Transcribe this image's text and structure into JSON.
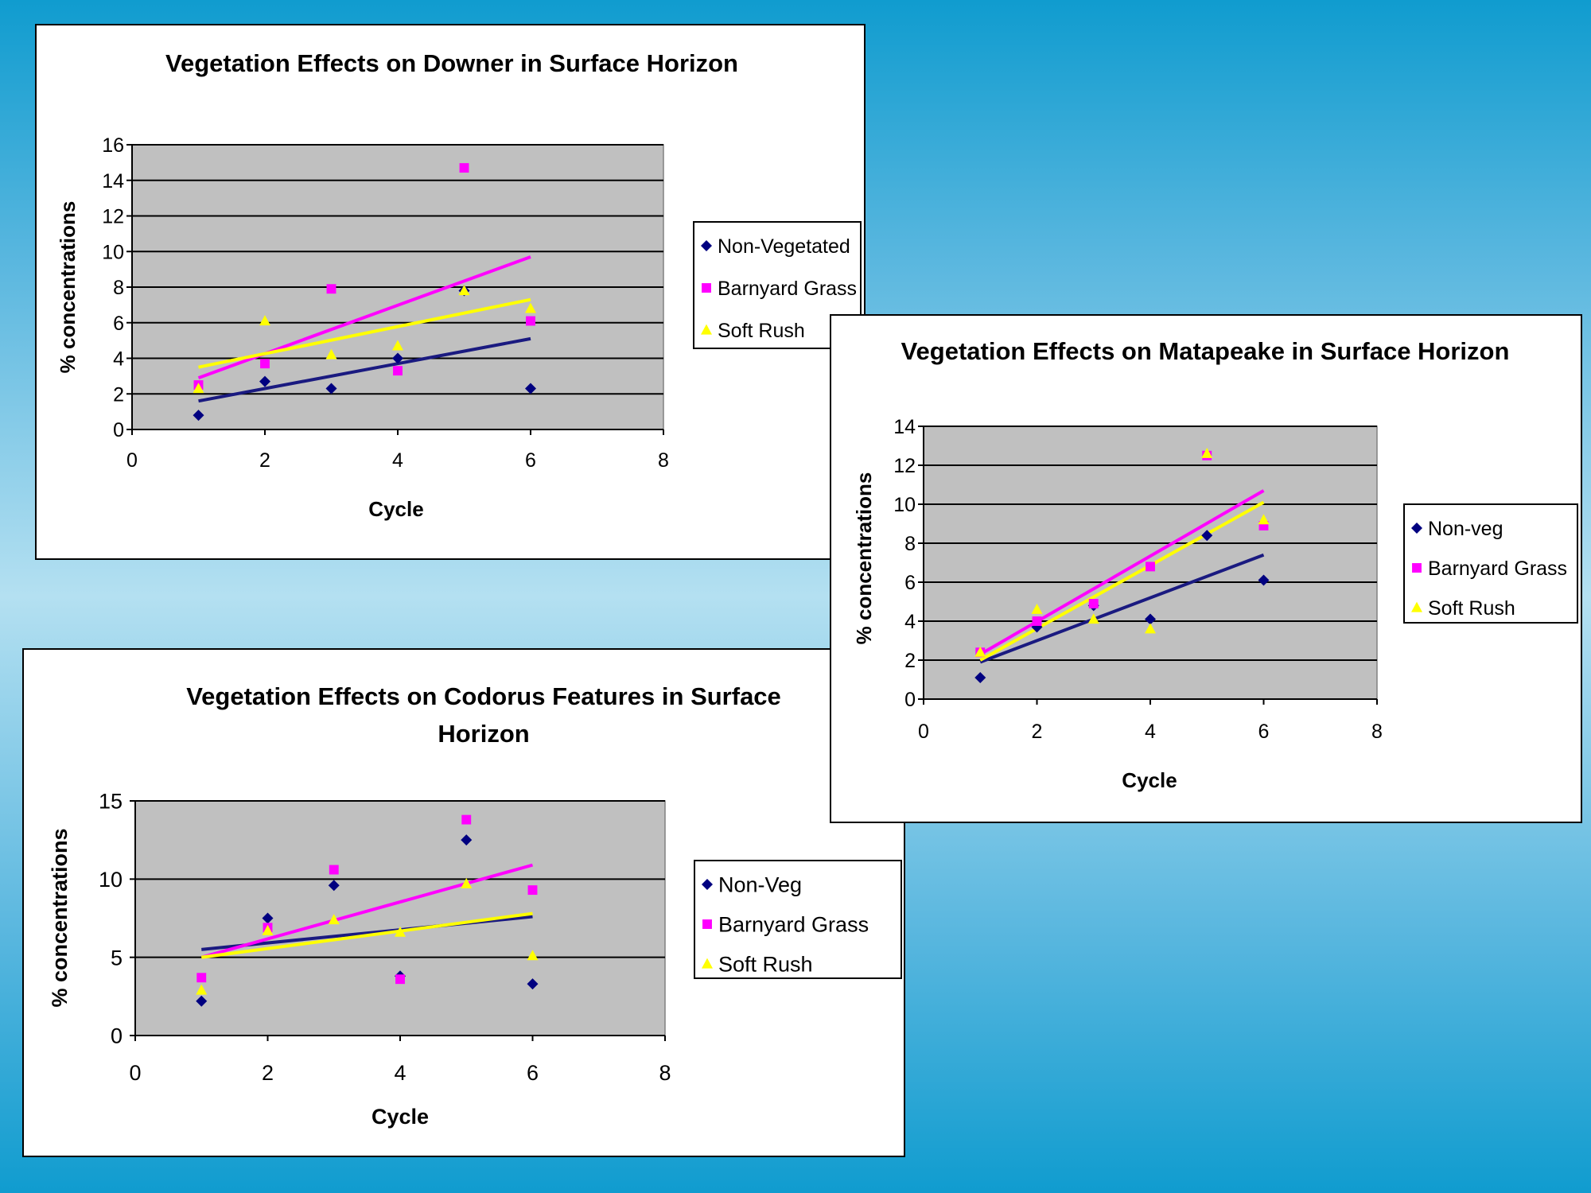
{
  "chart_data": [
    {
      "id": "downer",
      "type": "scatter",
      "title": "Vegetation Effects on Downer in Surface Horizon",
      "xlabel": "Cycle",
      "ylabel": "% concentrations",
      "xlim": [
        0,
        8
      ],
      "ylim": [
        0,
        16
      ],
      "xticks": [
        0,
        2,
        4,
        6,
        8
      ],
      "yticks": [
        0,
        2,
        4,
        6,
        8,
        10,
        12,
        14,
        16
      ],
      "grid": true,
      "legend_position": "right",
      "series": [
        {
          "name": "Non-Vegetated",
          "marker": "diamond",
          "color": "#000080",
          "x": [
            1,
            2,
            3,
            4,
            5,
            6
          ],
          "y": [
            0.8,
            2.7,
            2.3,
            4.0,
            7.8,
            2.3
          ],
          "trend": [
            [
              1,
              1.6
            ],
            [
              6,
              5.1
            ]
          ]
        },
        {
          "name": "Barnyard Grass",
          "marker": "square",
          "color": "#ff00ff",
          "x": [
            1,
            2,
            3,
            4,
            5,
            6
          ],
          "y": [
            2.5,
            3.7,
            7.9,
            3.3,
            14.7,
            6.1
          ],
          "trend": [
            [
              1,
              2.9
            ],
            [
              6,
              9.7
            ]
          ]
        },
        {
          "name": "Soft Rush",
          "marker": "triangle",
          "color": "#ffff00",
          "x": [
            1,
            2,
            3,
            4,
            5,
            6
          ],
          "y": [
            2.3,
            6.1,
            4.2,
            4.7,
            7.8,
            6.8
          ],
          "trend": [
            [
              1,
              3.5
            ],
            [
              6,
              7.3
            ]
          ]
        }
      ]
    },
    {
      "id": "matapeake",
      "type": "scatter",
      "title": "Vegetation Effects on Matapeake in Surface Horizon",
      "xlabel": "Cycle",
      "ylabel": "% concentrations",
      "xlim": [
        0,
        8
      ],
      "ylim": [
        0,
        14
      ],
      "xticks": [
        0,
        2,
        4,
        6,
        8
      ],
      "yticks": [
        0,
        2,
        4,
        6,
        8,
        10,
        12,
        14
      ],
      "grid": true,
      "legend_position": "right",
      "series": [
        {
          "name": "Non-veg",
          "marker": "diamond",
          "color": "#000080",
          "x": [
            1,
            2,
            3,
            4,
            5,
            6
          ],
          "y": [
            1.1,
            3.7,
            4.8,
            4.1,
            8.4,
            6.1
          ],
          "trend": [
            [
              1,
              1.9
            ],
            [
              6,
              7.4
            ]
          ]
        },
        {
          "name": "Barnyard Grass",
          "marker": "square",
          "color": "#ff00ff",
          "x": [
            1,
            2,
            3,
            4,
            5,
            6
          ],
          "y": [
            2.4,
            4.0,
            4.9,
            6.8,
            12.5,
            8.9
          ],
          "trend": [
            [
              1,
              2.3
            ],
            [
              6,
              10.7
            ]
          ]
        },
        {
          "name": "Soft Rush",
          "marker": "triangle",
          "color": "#ffff00",
          "x": [
            1,
            2,
            3,
            4,
            5,
            6
          ],
          "y": [
            2.4,
            4.6,
            4.1,
            3.6,
            12.6,
            9.2
          ],
          "trend": [
            [
              1,
              2.0
            ],
            [
              6,
              10.1
            ]
          ]
        }
      ]
    },
    {
      "id": "codorus",
      "type": "scatter",
      "title": "Vegetation Effects on Codorus Features in Surface Horizon",
      "xlabel": "Cycle",
      "ylabel": "% concentrations",
      "xlim": [
        0,
        8
      ],
      "ylim": [
        0,
        15
      ],
      "xticks": [
        0,
        2,
        4,
        6,
        8
      ],
      "yticks": [
        0,
        5,
        10,
        15
      ],
      "grid": true,
      "legend_position": "right",
      "series": [
        {
          "name": "Non-Veg",
          "marker": "diamond",
          "color": "#000080",
          "x": [
            1,
            2,
            3,
            4,
            5,
            6
          ],
          "y": [
            2.2,
            7.5,
            9.6,
            3.8,
            12.5,
            3.3
          ],
          "trend": [
            [
              1,
              5.5
            ],
            [
              6,
              7.6
            ]
          ]
        },
        {
          "name": "Barnyard Grass",
          "marker": "square",
          "color": "#ff00ff",
          "x": [
            1,
            2,
            3,
            4,
            5,
            6
          ],
          "y": [
            3.7,
            6.9,
            10.6,
            3.6,
            13.8,
            9.3
          ],
          "trend": [
            [
              1,
              5.0
            ],
            [
              6,
              10.9
            ]
          ]
        },
        {
          "name": "Soft Rush",
          "marker": "triangle",
          "color": "#ffff00",
          "x": [
            1,
            2,
            3,
            4,
            5,
            6
          ],
          "y": [
            2.9,
            6.7,
            7.4,
            6.6,
            9.7,
            5.1
          ],
          "trend": [
            [
              1,
              5.0
            ],
            [
              6,
              7.8
            ]
          ]
        }
      ]
    }
  ]
}
